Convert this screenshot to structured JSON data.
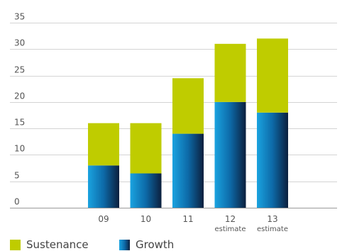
{
  "chart_data": {
    "type": "bar",
    "stacked": true,
    "categories": [
      "09",
      "10",
      "11",
      "12",
      "13"
    ],
    "category_sublabels": [
      "",
      "",
      "",
      "estimate",
      "estimate"
    ],
    "series": [
      {
        "name": "Growth",
        "values": [
          8,
          6.5,
          14,
          20,
          18
        ],
        "color": "#1a6fb0"
      },
      {
        "name": "Sustenance",
        "values": [
          8,
          9.5,
          10.5,
          11,
          14
        ],
        "color": "#bfcc00"
      }
    ],
    "ylim": [
      0,
      35
    ],
    "yticks": [
      0,
      5,
      10,
      15,
      20,
      25,
      30,
      35
    ],
    "grid": true,
    "legend_position": "bottom-left"
  },
  "legend": {
    "sustenance_label": "Sustenance",
    "growth_label": "Growth"
  }
}
